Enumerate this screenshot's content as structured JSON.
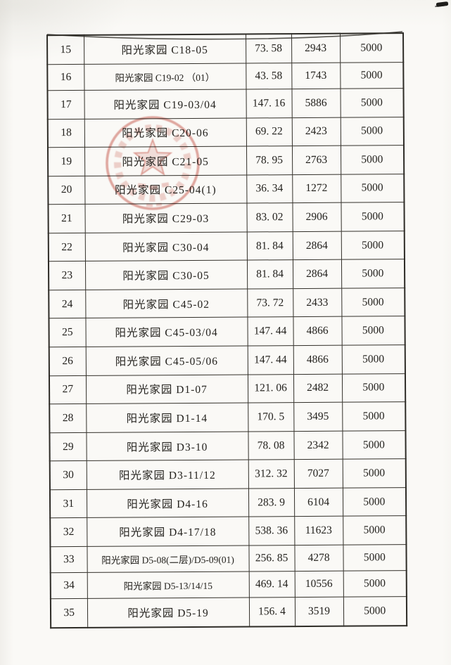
{
  "page": {
    "kind": "scanned fee table page (continuation, rows 15-35)",
    "paper_color": "#faf9f6",
    "line_color": "#33302a",
    "stamp_color": "#c0392b",
    "ink_mark_icon": "ink-smudge-icon"
  },
  "table": {
    "rows": [
      [
        "15",
        "阳光家园 C18-05",
        "73. 58",
        "2943",
        "5000"
      ],
      [
        "16",
        "阳光家园 C19-02 （01）",
        "43. 58",
        "1743",
        "5000"
      ],
      [
        "17",
        "阳光家园 C19-03/04",
        "147. 16",
        "5886",
        "5000"
      ],
      [
        "18",
        "阳光家园 C20-06",
        "69. 22",
        "2423",
        "5000"
      ],
      [
        "19",
        "阳光家园 C21-05",
        "78. 95",
        "2763",
        "5000"
      ],
      [
        "20",
        "阳光家园 C25-04(1)",
        "36. 34",
        "1272",
        "5000"
      ],
      [
        "21",
        "阳光家园 C29-03",
        "83. 02",
        "2906",
        "5000"
      ],
      [
        "22",
        "阳光家园 C30-04",
        "81. 84",
        "2864",
        "5000"
      ],
      [
        "23",
        "阳光家园 C30-05",
        "81. 84",
        "2864",
        "5000"
      ],
      [
        "24",
        "阳光家园 C45-02",
        "73. 72",
        "2433",
        "5000"
      ],
      [
        "25",
        "阳光家园 C45-03/04",
        "147. 44",
        "4866",
        "5000"
      ],
      [
        "26",
        "阳光家园 C45-05/06",
        "147. 44",
        "4866",
        "5000"
      ],
      [
        "27",
        "阳光家园 D1-07",
        "121. 06",
        "2482",
        "5000"
      ],
      [
        "28",
        "阳光家园 D1-14",
        "170. 5",
        "3495",
        "5000"
      ],
      [
        "29",
        "阳光家园 D3-10",
        "78. 08",
        "2342",
        "5000"
      ],
      [
        "30",
        "阳光家园 D3-11/12",
        "312. 32",
        "7027",
        "5000"
      ],
      [
        "31",
        "阳光家园 D4-16",
        "283. 9",
        "6104",
        "5000"
      ],
      [
        "32",
        "阳光家园 D4-17/18",
        "538. 36",
        "11623",
        "5000"
      ],
      [
        "33",
        "阳光家园 D5-08(二层)/D5-09(01)",
        "256. 85",
        "4278",
        "5000"
      ],
      [
        "34",
        "阳光家园 D5-13/14/15",
        "469. 14",
        "10556",
        "5000"
      ],
      [
        "35",
        "阳光家园 D5-19",
        "156. 4",
        "3519",
        "5000"
      ]
    ]
  }
}
